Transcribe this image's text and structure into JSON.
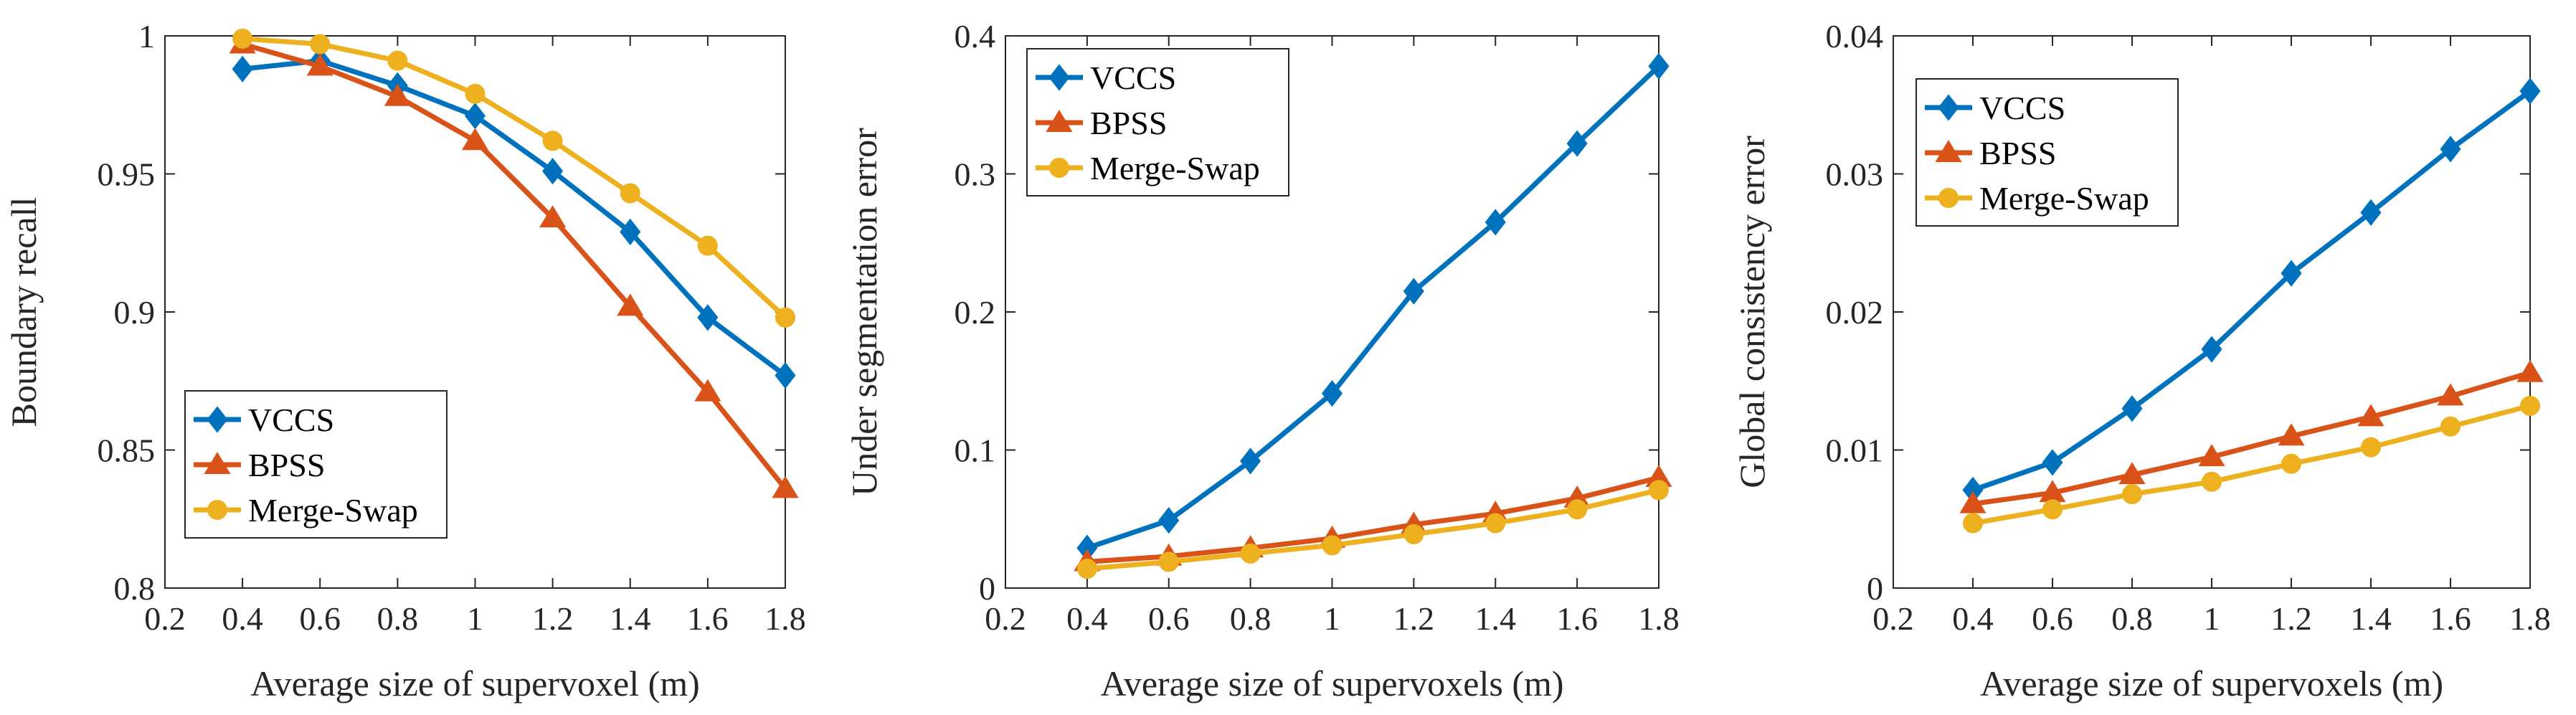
{
  "chart_data": [
    {
      "type": "line",
      "xlabel": "Average size of supervoxel (m)",
      "ylabel": "Boundary recall",
      "xlim": [
        0.2,
        1.8
      ],
      "ylim": [
        0.8,
        1.0
      ],
      "xticks": [
        0.2,
        0.4,
        0.6,
        0.8,
        1.0,
        1.2,
        1.4,
        1.6,
        1.8
      ],
      "xtick_labels": [
        "0.2",
        "0.4",
        "0.6",
        "0.8",
        "1",
        "1.2",
        "1.4",
        "1.6",
        "1.8"
      ],
      "yticks": [
        0.8,
        0.85,
        0.9,
        0.95,
        1.0
      ],
      "ytick_labels": [
        "0.8",
        "0.85",
        "0.9",
        "0.95",
        "1"
      ],
      "legend_position": "bottom-left",
      "x": [
        0.4,
        0.6,
        0.8,
        1.0,
        1.2,
        1.4,
        1.6,
        1.8
      ],
      "series": [
        {
          "name": "VCCS",
          "color": "#0072BD",
          "marker": "diamond",
          "values": [
            0.988,
            0.991,
            0.982,
            0.971,
            0.951,
            0.929,
            0.898,
            0.877
          ]
        },
        {
          "name": "BPSS",
          "color": "#D95319",
          "marker": "triangle",
          "values": [
            0.997,
            0.989,
            0.978,
            0.962,
            0.934,
            0.902,
            0.871,
            0.836
          ]
        },
        {
          "name": "Merge-Swap",
          "color": "#EDB120",
          "marker": "circle",
          "values": [
            0.999,
            0.997,
            0.991,
            0.979,
            0.962,
            0.943,
            0.924,
            0.898
          ]
        }
      ]
    },
    {
      "type": "line",
      "xlabel": "Average size of supervoxels (m)",
      "ylabel": "Under segmentation error",
      "xlim": [
        0.2,
        1.8
      ],
      "ylim": [
        0,
        0.4
      ],
      "xticks": [
        0.2,
        0.4,
        0.6,
        0.8,
        1.0,
        1.2,
        1.4,
        1.6,
        1.8
      ],
      "xtick_labels": [
        "0.2",
        "0.4",
        "0.6",
        "0.8",
        "1",
        "1.2",
        "1.4",
        "1.6",
        "1.8"
      ],
      "yticks": [
        0,
        0.1,
        0.2,
        0.3,
        0.4
      ],
      "ytick_labels": [
        "0",
        "0.1",
        "0.2",
        "0.3",
        "0.4"
      ],
      "legend_position": "top-left",
      "x": [
        0.4,
        0.6,
        0.8,
        1.0,
        1.2,
        1.4,
        1.6,
        1.8
      ],
      "series": [
        {
          "name": "VCCS",
          "color": "#0072BD",
          "marker": "diamond",
          "values": [
            0.029,
            0.049,
            0.092,
            0.141,
            0.215,
            0.265,
            0.322,
            0.378
          ]
        },
        {
          "name": "BPSS",
          "color": "#D95319",
          "marker": "triangle",
          "values": [
            0.019,
            0.023,
            0.029,
            0.036,
            0.046,
            0.054,
            0.065,
            0.08
          ]
        },
        {
          "name": "Merge-Swap",
          "color": "#EDB120",
          "marker": "circle",
          "values": [
            0.014,
            0.019,
            0.025,
            0.031,
            0.039,
            0.047,
            0.057,
            0.071
          ]
        }
      ]
    },
    {
      "type": "line",
      "xlabel": "Average size of supervoxels (m)",
      "ylabel": "Global consistency error",
      "xlim": [
        0.2,
        1.8
      ],
      "ylim": [
        0,
        0.04
      ],
      "xticks": [
        0.2,
        0.4,
        0.6,
        0.8,
        1.0,
        1.2,
        1.4,
        1.6,
        1.8
      ],
      "xtick_labels": [
        "0.2",
        "0.4",
        "0.6",
        "0.8",
        "1",
        "1.2",
        "1.4",
        "1.6",
        "1.8"
      ],
      "yticks": [
        0,
        0.01,
        0.02,
        0.03,
        0.04
      ],
      "ytick_labels": [
        "0",
        "0.01",
        "0.02",
        "0.03",
        "0.04"
      ],
      "legend_position": "top-left",
      "x": [
        0.4,
        0.6,
        0.8,
        1.0,
        1.2,
        1.4,
        1.6,
        1.8
      ],
      "series": [
        {
          "name": "VCCS",
          "color": "#0072BD",
          "marker": "diamond",
          "values": [
            0.0071,
            0.0091,
            0.013,
            0.0173,
            0.0228,
            0.0272,
            0.0318,
            0.036
          ]
        },
        {
          "name": "BPSS",
          "color": "#D95319",
          "marker": "triangle",
          "values": [
            0.0061,
            0.0069,
            0.0082,
            0.0095,
            0.011,
            0.0124,
            0.0139,
            0.0156
          ]
        },
        {
          "name": "Merge-Swap",
          "color": "#EDB120",
          "marker": "circle",
          "values": [
            0.0047,
            0.0057,
            0.0068,
            0.0077,
            0.009,
            0.0102,
            0.0117,
            0.0132
          ]
        }
      ]
    }
  ]
}
